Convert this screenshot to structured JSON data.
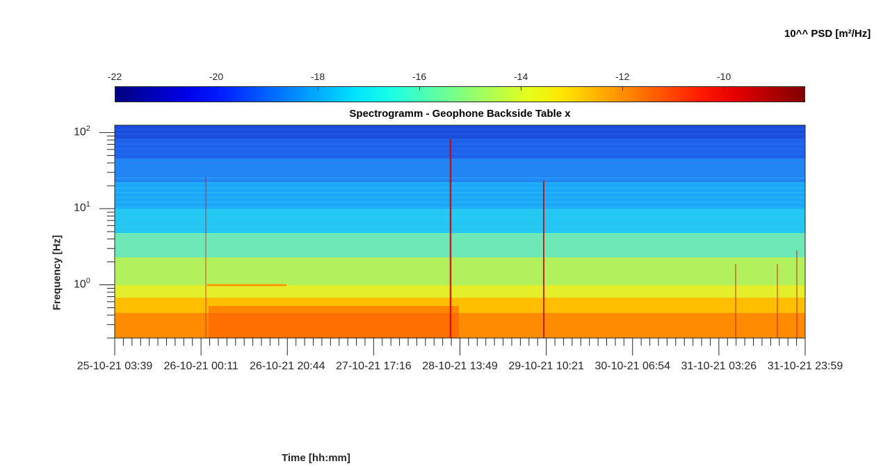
{
  "chart_data": {
    "type": "heatmap",
    "title": "Spectrogramm - Geophone Backside Table x",
    "xlabel": "Time [hh:mm]",
    "ylabel": "Frequency [Hz]",
    "x_tick_labels": [
      "25-10-21  03:39",
      "26-10-21  00:11",
      "26-10-21  20:44",
      "27-10-21  17:16",
      "28-10-21  13:49",
      "29-10-21  10:21",
      "30-10-21  06:54",
      "31-10-21  03:26",
      "31-10-21  23:59"
    ],
    "y_scale": "log",
    "ylim": [
      0.2,
      125
    ],
    "y_ticks": [
      {
        "value": 1,
        "base": "10",
        "exp": "0"
      },
      {
        "value": 10,
        "base": "10",
        "exp": "1"
      },
      {
        "value": 100,
        "base": "10",
        "exp": "2"
      }
    ],
    "colorbar": {
      "title": "10^^ PSD [m²/Hz]",
      "colormap": "jet",
      "range": [
        -22,
        -8.4
      ],
      "ticks": [
        -22,
        -20,
        -18,
        -16,
        -14,
        -12,
        -10
      ]
    }
  }
}
